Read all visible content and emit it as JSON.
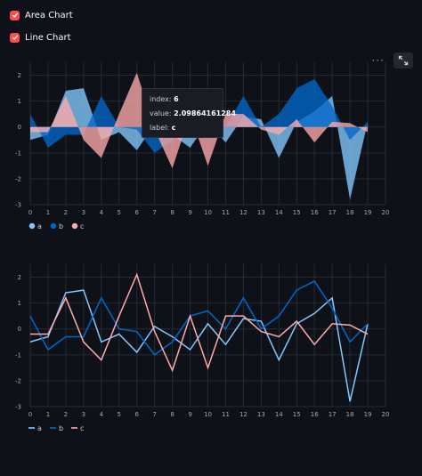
{
  "controls": {
    "area_checkbox": {
      "label": "Area Chart",
      "checked": true
    },
    "line_checkbox": {
      "label": "Line Chart",
      "checked": true
    }
  },
  "toolbar": {
    "menu_icon": "more-horizontal-icon",
    "fullscreen_icon": "expand-icon"
  },
  "tooltip": {
    "index_label": "index:",
    "index_value": "6",
    "value_label": "value:",
    "value_value": "2.09864161284",
    "label_label": "label:",
    "label_value": "c"
  },
  "colors": {
    "a": "#83c9ff",
    "b": "#0068c9",
    "c": "#ffabab",
    "accent": "#ff4b4b"
  },
  "chart_data": [
    {
      "type": "area",
      "x": [
        0,
        1,
        2,
        3,
        4,
        5,
        6,
        7,
        8,
        9,
        10,
        11,
        12,
        13,
        14,
        15,
        16,
        17,
        18,
        19
      ],
      "xlim": [
        0,
        20
      ],
      "ylim": [
        -3,
        2.5
      ],
      "x_ticks": [
        "0",
        "1",
        "2",
        "3",
        "4",
        "5",
        "6",
        "7",
        "8",
        "9",
        "10",
        "11",
        "12",
        "13",
        "14",
        "15",
        "16",
        "17",
        "18",
        "19",
        "20"
      ],
      "y_ticks": [
        "-3",
        "-2",
        "-1",
        "0",
        "1",
        "2"
      ],
      "grid": true,
      "legend_position": "bottom-left",
      "series": [
        {
          "name": "a",
          "values": [
            -0.5,
            -0.3,
            1.4,
            1.5,
            -0.5,
            -0.2,
            -0.9,
            0.1,
            -0.3,
            -0.8,
            0.2,
            -0.6,
            0.4,
            0.3,
            -1.2,
            0.2,
            0.6,
            1.2,
            -2.8,
            0.2
          ]
        },
        {
          "name": "b",
          "values": [
            0.5,
            -0.8,
            -0.3,
            -0.3,
            1.2,
            0.0,
            -0.1,
            -1.0,
            -0.5,
            0.5,
            0.7,
            0.0,
            1.2,
            0.0,
            0.5,
            1.5,
            1.85,
            0.8,
            -0.5,
            0.2
          ]
        },
        {
          "name": "c",
          "values": [
            -0.2,
            -0.2,
            1.2,
            -0.5,
            -1.2,
            0.5,
            2.1,
            -0.1,
            -1.6,
            0.5,
            -1.5,
            0.5,
            0.5,
            -0.1,
            -0.3,
            0.3,
            -0.6,
            0.2,
            0.15,
            -0.2
          ]
        }
      ]
    },
    {
      "type": "line",
      "x": [
        0,
        1,
        2,
        3,
        4,
        5,
        6,
        7,
        8,
        9,
        10,
        11,
        12,
        13,
        14,
        15,
        16,
        17,
        18,
        19
      ],
      "xlim": [
        0,
        20
      ],
      "ylim": [
        -3,
        2.5
      ],
      "x_ticks": [
        "0",
        "1",
        "2",
        "3",
        "4",
        "5",
        "6",
        "7",
        "8",
        "9",
        "10",
        "11",
        "12",
        "13",
        "14",
        "15",
        "16",
        "17",
        "18",
        "19",
        "20"
      ],
      "y_ticks": [
        "-3",
        "-2",
        "-1",
        "0",
        "1",
        "2"
      ],
      "grid": true,
      "legend_position": "bottom-left",
      "series": [
        {
          "name": "a",
          "values": [
            -0.5,
            -0.3,
            1.4,
            1.5,
            -0.5,
            -0.2,
            -0.9,
            0.1,
            -0.3,
            -0.8,
            0.2,
            -0.6,
            0.4,
            0.3,
            -1.2,
            0.2,
            0.6,
            1.2,
            -2.8,
            0.2
          ]
        },
        {
          "name": "b",
          "values": [
            0.5,
            -0.8,
            -0.3,
            -0.3,
            1.2,
            0.0,
            -0.1,
            -1.0,
            -0.5,
            0.5,
            0.7,
            0.0,
            1.2,
            0.0,
            0.5,
            1.5,
            1.85,
            0.8,
            -0.5,
            0.2
          ]
        },
        {
          "name": "c",
          "values": [
            -0.2,
            -0.2,
            1.2,
            -0.5,
            -1.2,
            0.5,
            2.1,
            -0.1,
            -1.6,
            0.5,
            -1.5,
            0.5,
            0.5,
            -0.1,
            -0.3,
            0.3,
            -0.6,
            0.2,
            0.15,
            -0.2
          ]
        }
      ]
    }
  ]
}
